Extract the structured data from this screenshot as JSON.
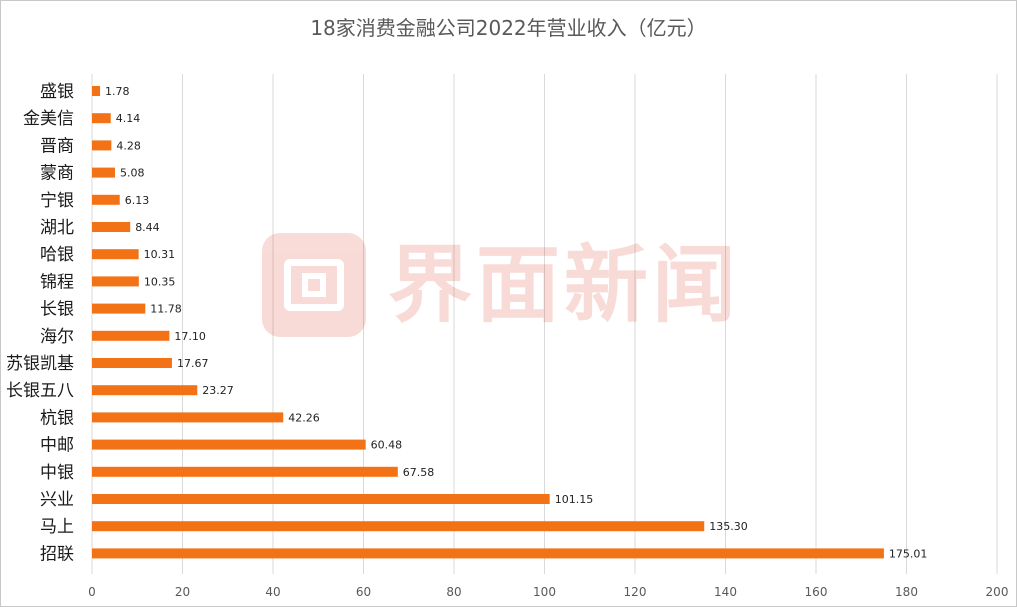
{
  "chart_data": {
    "type": "bar",
    "orientation": "horizontal",
    "title": "18家消费金融公司2022年营业收入（亿元）",
    "categories": [
      "盛银",
      "金美信",
      "晋商",
      "蒙商",
      "宁银",
      "湖北",
      "哈银",
      "锦程",
      "长银",
      "海尔",
      "苏银凯基",
      "长银五八",
      "杭银",
      "中邮",
      "中银",
      "兴业",
      "马上",
      "招联"
    ],
    "values": [
      1.78,
      4.14,
      4.28,
      5.08,
      6.13,
      8.44,
      10.31,
      10.35,
      11.78,
      17.1,
      17.67,
      23.27,
      42.26,
      60.48,
      67.58,
      101.15,
      135.3,
      175.01
    ],
    "value_labels": [
      "1.78",
      "4.14",
      "4.28",
      "5.08",
      "6.13",
      "8.44",
      "10.31",
      "10.35",
      "11.78",
      "17.10",
      "17.67",
      "23.27",
      "42.26",
      "60.48",
      "67.58",
      "101.15",
      "135.30",
      "175.01"
    ],
    "xlim": [
      0,
      200
    ],
    "xticks": [
      0,
      20,
      40,
      60,
      80,
      100,
      120,
      140,
      160,
      180,
      200
    ],
    "grid": "vertical",
    "bar_color": "#f47216",
    "grid_color": "#d9d9d9"
  },
  "watermark": {
    "icon": "jiemian-logo-icon",
    "text": "界面新闻",
    "color": "#d81e06"
  }
}
